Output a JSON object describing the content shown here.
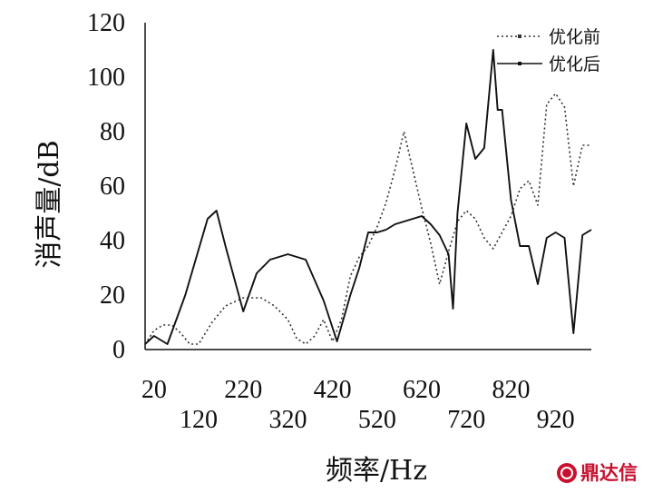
{
  "chart_data": {
    "type": "line",
    "xlabel": "频率/Hz",
    "ylabel": "消声量/dB",
    "xlim": [
      0,
      1000
    ],
    "ylim": [
      0,
      120
    ],
    "xticks": [
      20,
      120,
      220,
      320,
      420,
      520,
      620,
      720,
      820,
      920
    ],
    "yticks": [
      0,
      20,
      40,
      60,
      80,
      100,
      120
    ],
    "grid": false,
    "legend_position": "top-right",
    "series": [
      {
        "name": "优化前",
        "style": "dotted",
        "color": "#333333",
        "x": [
          0,
          20,
          40,
          60,
          80,
          100,
          120,
          150,
          180,
          220,
          260,
          290,
          320,
          340,
          360,
          380,
          400,
          420,
          440,
          460,
          480,
          500,
          520,
          540,
          560,
          580,
          600,
          620,
          640,
          660,
          680,
          700,
          720,
          740,
          760,
          780,
          800,
          820,
          840,
          860,
          880,
          900,
          920,
          940,
          960,
          980,
          1000
        ],
        "y": [
          2,
          7,
          9,
          9,
          6,
          2,
          2,
          10,
          16,
          19,
          19,
          16,
          11,
          4,
          2,
          5,
          11,
          3,
          11,
          27,
          34,
          38,
          45,
          54,
          66,
          80,
          66,
          52,
          39,
          24,
          36,
          47,
          51,
          48,
          41,
          37,
          43,
          49,
          59,
          62,
          53,
          90,
          94,
          89,
          60,
          75,
          75
        ]
      },
      {
        "name": "优化后",
        "style": "solid",
        "color": "#111111",
        "x": [
          0,
          20,
          50,
          90,
          140,
          160,
          180,
          220,
          250,
          280,
          320,
          360,
          400,
          430,
          460,
          480,
          500,
          520,
          540,
          560,
          600,
          620,
          640,
          660,
          680,
          690,
          700,
          720,
          740,
          760,
          780,
          790,
          800,
          820,
          840,
          860,
          880,
          900,
          920,
          940,
          960,
          980,
          1000
        ],
        "y": [
          2,
          5,
          2,
          20,
          48,
          51,
          38,
          14,
          28,
          33,
          35,
          33,
          18,
          3,
          20,
          30,
          43,
          43,
          44,
          46,
          48,
          49,
          46,
          42,
          35,
          15,
          50,
          83,
          70,
          74,
          110,
          88,
          88,
          55,
          38,
          38,
          24,
          41,
          43,
          41,
          6,
          42,
          44
        ]
      }
    ]
  },
  "watermark": {
    "text": "鼎达信",
    "icon": "dingdaxin-logo-icon",
    "color": "#c8102e"
  }
}
